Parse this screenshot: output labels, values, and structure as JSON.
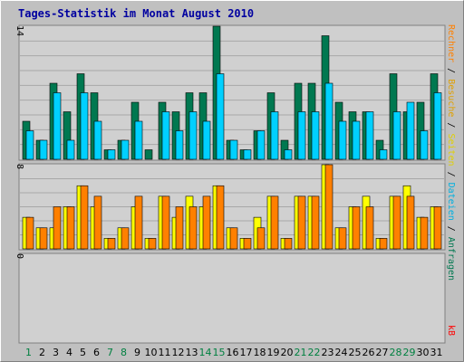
{
  "title": "Tages-Statistik im Monat August 2010",
  "colors": {
    "frame": "#c0c0c0",
    "plot_bg": "#d0d0d0",
    "gridline": "#a8a8a8",
    "hits": "#007850",
    "files": "#00d0ff",
    "pages": "#ffff00",
    "visits": "#ff8000",
    "kbytes": "#ff0000",
    "weekday_label": "#000000",
    "weekend_label": "#008040"
  },
  "side_legend": {
    "top": [
      {
        "text": "Anfragen",
        "color": "#007850"
      },
      {
        "text": " / ",
        "color": "#000000"
      },
      {
        "text": "Dateien",
        "color": "#00b0e0"
      },
      {
        "text": " / ",
        "color": "#000000"
      },
      {
        "text": "Seiten",
        "color": "#e0d000"
      },
      {
        "text": " / ",
        "color": "#000000"
      },
      {
        "text": "Besuche",
        "color": "#e0a000"
      },
      {
        "text": " / ",
        "color": "#000000"
      },
      {
        "text": "Rechner",
        "color": "#ff8000"
      }
    ],
    "bottom": {
      "text": "kB",
      "color": "#ff0000"
    }
  },
  "chart_data": [
    {
      "type": "bar",
      "name": "hits-files",
      "series": [
        {
          "name": "Anfragen",
          "values": [
            4,
            2,
            8,
            5,
            9,
            7,
            1,
            2,
            6,
            1,
            6,
            5,
            7,
            7,
            14,
            2,
            1,
            3,
            7,
            2,
            8,
            8,
            13,
            6,
            5,
            5,
            2,
            9,
            5,
            6,
            9
          ]
        },
        {
          "name": "Dateien",
          "values": [
            3,
            2,
            7,
            2,
            7,
            4,
            1,
            2,
            4,
            0,
            5,
            3,
            5,
            4,
            9,
            2,
            1,
            3,
            5,
            1,
            5,
            5,
            8,
            4,
            4,
            5,
            1,
            5,
            6,
            3,
            7
          ]
        }
      ],
      "ymax_label": "14",
      "ylim": [
        0,
        14
      ]
    },
    {
      "type": "bar",
      "name": "pages-visits",
      "series": [
        {
          "name": "Seiten",
          "values": [
            3,
            2,
            2,
            4,
            6,
            4,
            1,
            2,
            4,
            1,
            5,
            3,
            5,
            4,
            6,
            2,
            1,
            3,
            5,
            1,
            5,
            5,
            8,
            2,
            4,
            5,
            1,
            5,
            6,
            3,
            4
          ]
        },
        {
          "name": "Besuche",
          "values": [
            3,
            2,
            4,
            4,
            6,
            5,
            1,
            2,
            5,
            1,
            5,
            4,
            4,
            5,
            6,
            2,
            1,
            2,
            5,
            1,
            5,
            5,
            8,
            2,
            4,
            4,
            1,
            5,
            5,
            3,
            4
          ]
        }
      ],
      "ymax_label": "8",
      "ylim": [
        0,
        8
      ]
    },
    {
      "type": "bar",
      "name": "kbytes",
      "series": [
        {
          "name": "kB",
          "values": [
            0,
            0,
            0,
            0,
            0,
            0,
            0,
            0,
            0,
            0,
            0,
            0,
            0,
            0,
            0,
            0,
            0,
            0,
            0,
            0,
            0,
            0,
            0,
            0,
            0,
            0,
            0,
            0,
            0,
            0,
            0
          ]
        }
      ],
      "ymax_label": "0",
      "ylim": [
        0,
        1
      ]
    }
  ],
  "days": [
    {
      "label": "1",
      "weekend": true
    },
    {
      "label": "2",
      "weekend": false
    },
    {
      "label": "3",
      "weekend": false
    },
    {
      "label": "4",
      "weekend": false
    },
    {
      "label": "5",
      "weekend": false
    },
    {
      "label": "6",
      "weekend": false
    },
    {
      "label": "7",
      "weekend": true
    },
    {
      "label": "8",
      "weekend": true
    },
    {
      "label": "9",
      "weekend": false
    },
    {
      "label": "10",
      "weekend": false
    },
    {
      "label": "11",
      "weekend": false
    },
    {
      "label": "12",
      "weekend": false
    },
    {
      "label": "13",
      "weekend": false
    },
    {
      "label": "14",
      "weekend": true
    },
    {
      "label": "15",
      "weekend": true
    },
    {
      "label": "16",
      "weekend": false
    },
    {
      "label": "17",
      "weekend": false
    },
    {
      "label": "18",
      "weekend": false
    },
    {
      "label": "19",
      "weekend": false
    },
    {
      "label": "20",
      "weekend": false
    },
    {
      "label": "21",
      "weekend": true
    },
    {
      "label": "22",
      "weekend": true
    },
    {
      "label": "23",
      "weekend": false
    },
    {
      "label": "24",
      "weekend": false
    },
    {
      "label": "25",
      "weekend": false
    },
    {
      "label": "26",
      "weekend": false
    },
    {
      "label": "27",
      "weekend": false
    },
    {
      "label": "28",
      "weekend": true
    },
    {
      "label": "29",
      "weekend": true
    },
    {
      "label": "30",
      "weekend": false
    },
    {
      "label": "31",
      "weekend": false
    }
  ]
}
